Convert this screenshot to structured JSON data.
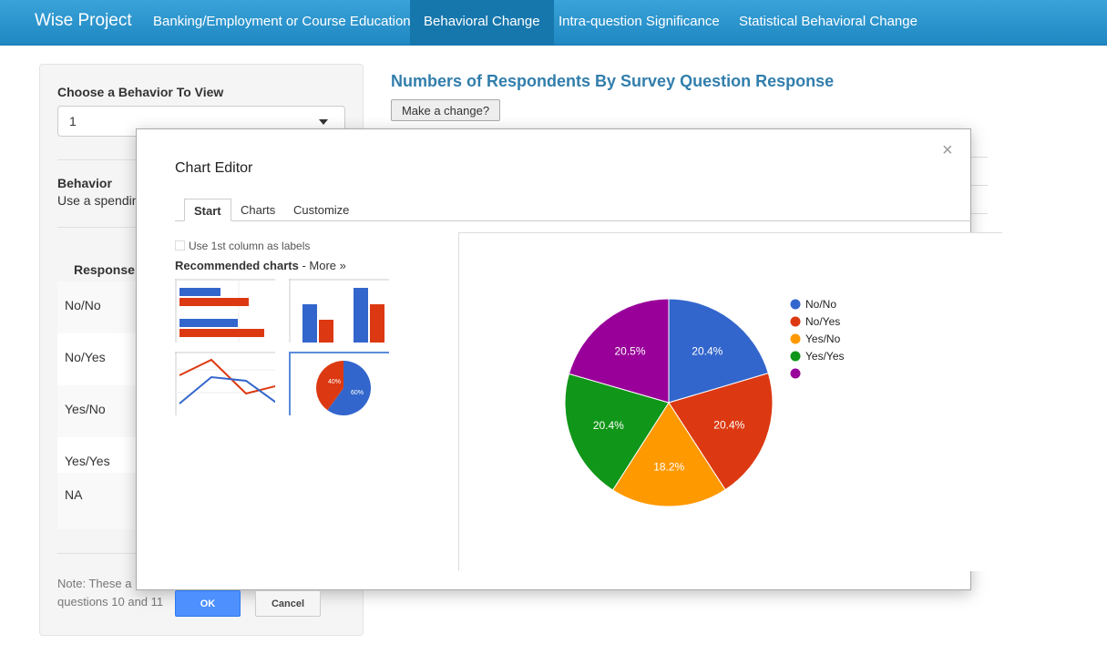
{
  "nav": {
    "brand": "Wise Project",
    "items": [
      {
        "label": "Banking/Employment or Course Education",
        "active": false
      },
      {
        "label": "Behavioral Change",
        "active": true
      },
      {
        "label": "Intra-question Significance",
        "active": false
      },
      {
        "label": "Statistical Behavioral Change",
        "active": false
      }
    ]
  },
  "sidebar": {
    "choose_label": "Choose a Behavior To View",
    "select_value": "1",
    "behavior_label": "Behavior",
    "behavior_desc": "Use a spendin",
    "table_header": "Response",
    "rows": [
      "No/No",
      "No/Yes",
      "Yes/No",
      "Yes/Yes",
      "NA"
    ],
    "note_line1": "Note: These a",
    "note_line2": "questions 10 and 11"
  },
  "main": {
    "title": "Numbers of Respondents By Survey Question Response",
    "change_button": "Make a change?"
  },
  "modal": {
    "title": "Chart Editor",
    "close": "×",
    "tabs": [
      {
        "label": "Start",
        "active": true
      },
      {
        "label": "Charts",
        "active": false
      },
      {
        "label": "Customize",
        "active": false
      }
    ],
    "checkbox_label": "Use 1st column as labels",
    "recommended_label": "Recommended charts",
    "more_link": "More »",
    "thumb_pie_labels": [
      "40%",
      "60%"
    ],
    "ok": "OK",
    "cancel": "Cancel"
  },
  "chart_data": {
    "type": "pie",
    "categories": [
      "No/No",
      "No/Yes",
      "Yes/No",
      "Yes/Yes",
      ""
    ],
    "values": [
      20.4,
      20.4,
      18.2,
      20.4,
      20.5
    ],
    "labels": [
      "20.4%",
      "20.4%",
      "18.2%",
      "20.4%",
      "20.5%"
    ],
    "colors": [
      "#3366cc",
      "#dc3912",
      "#ff9900",
      "#109618",
      "#990099"
    ],
    "legend_position": "right"
  }
}
